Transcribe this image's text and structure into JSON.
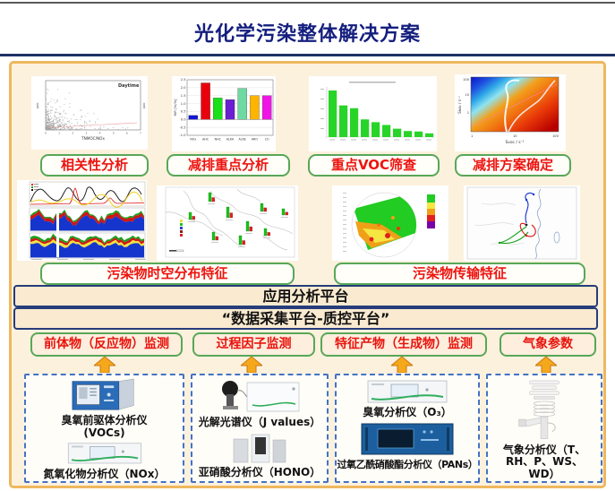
{
  "page": {
    "title": "光化学污染整体解决方案"
  },
  "analysis_steps": [
    {
      "label": "相关性分析"
    },
    {
      "label": "减排重点分析"
    },
    {
      "label": "重点VOC筛查"
    },
    {
      "label": "减排方案确定"
    }
  ],
  "feature_rows": [
    {
      "label": "污染物时空分布特征"
    },
    {
      "label": "污染物传输特征"
    }
  ],
  "platforms": [
    {
      "label": "应用分析平台"
    },
    {
      "label": "“数据采集平台-质控平台”"
    }
  ],
  "monitor_groups": [
    {
      "header": "前体物（反应物）监测",
      "instruments": [
        {
          "name": "臭氧前驱体分析仪",
          "sub": "(VOCs)"
        },
        {
          "name": "氮氧化物分析仪（NOx）"
        }
      ]
    },
    {
      "header": "过程因子监测",
      "instruments": [
        {
          "name": "光解光谱仪（J values）"
        },
        {
          "name": "亚硝酸分析仪（HONO）"
        }
      ]
    },
    {
      "header": "特征产物（生成物）监测",
      "instruments": [
        {
          "name": "臭氧分析仪（O₃）"
        },
        {
          "name": "过氧乙酰硝酸酯分析仪（PANs）"
        }
      ]
    },
    {
      "header": "气象参数",
      "instruments": [
        {
          "name": "气象分析仪（T、RH、P、WS、WD）"
        }
      ]
    }
  ],
  "chart_data": [
    {
      "id": "scatter",
      "type": "scatter",
      "caption": "相关性分析",
      "annotation": "Daytime",
      "xlabel": "TNMOC/NOx",
      "ylabel": "ppb",
      "x_ticks": [
        0,
        1,
        2,
        3,
        4,
        5,
        6,
        7
      ],
      "points_desc": "several hundred gray points densely clustered at low TNMOC/NOx, density decreasing upward; thin pink near-flat regression line"
    },
    {
      "id": "rir_bar",
      "type": "bar",
      "caption": "减排重点分析",
      "ylabel": "RIR [%/%]",
      "ylim": [
        -1.0,
        2.5
      ],
      "ytick_step": 0.5,
      "categories": [
        "NOx",
        "AHC",
        "NHC",
        "ALKA",
        "ALKE",
        "ARO",
        "CO"
      ],
      "values": [
        0.25,
        2.3,
        1.35,
        1.25,
        1.95,
        1.5,
        1.5
      ],
      "colors": [
        "#1515d6",
        "#e8000d",
        "#19e019",
        "#6a1fd0",
        "#6fd9a2",
        "#ffb400",
        "#f014e6"
      ]
    },
    {
      "id": "voc_pareto",
      "type": "bar",
      "caption": "重点VOC筛查",
      "values": [
        100,
        68,
        62,
        38,
        32,
        26,
        18,
        13,
        12,
        8
      ],
      "color": "#28d428",
      "note": "top-10 VOC species in descending order; title and tick labels illegible at source resolution"
    },
    {
      "id": "ekma",
      "type": "heatmap",
      "caption": "减排方案确定",
      "xlabel": "Svoc / s⁻¹",
      "ylabel": "Sɴᴏ₂ / s⁻¹",
      "x_ticks": [
        1,
        10,
        100
      ],
      "y_ticks": [
        1,
        10,
        100
      ],
      "note": "EKMA-style ozone isopleth diagram: dark blue (upper-left) through cyan and orange to dark red (right), two white observation curves, pink dashed ridge line"
    },
    {
      "id": "timeseries",
      "type": "area",
      "caption": "污染物时空分布特征",
      "note": "three stacked time-series panels: top line panel (black / red-spike / yellow traces), two stacked-area panels (blue base with yellow, red, green layers)"
    },
    {
      "id": "station_map",
      "type": "map",
      "caption": "污染物时空分布特征",
      "note": "regional map with paired green/red concentration bars at monitoring sites and a small colour legend"
    },
    {
      "id": "polar_plot",
      "type": "heatmap",
      "caption": "污染物传输特征",
      "note": "polar (CPF/wind-sector) plot, green-yellow-orange-red scale with 5-step colour legend"
    },
    {
      "id": "trajectory_map",
      "type": "map",
      "caption": "污染物传输特征",
      "note": "back-trajectory map of east China with blue, red and green trajectory paths"
    }
  ],
  "colors": {
    "title_navy": "#141e7e",
    "rule_navy": "#1e3264",
    "frame_tan": "#efb85e",
    "panel_cream": "#fcf1dd",
    "label_red": "#ed1410",
    "label_green_border": "#58a758",
    "dash_blue": "#4472c4",
    "arrow_orange": "#f6a81c",
    "platbar_navy_border": "#263d7a"
  }
}
